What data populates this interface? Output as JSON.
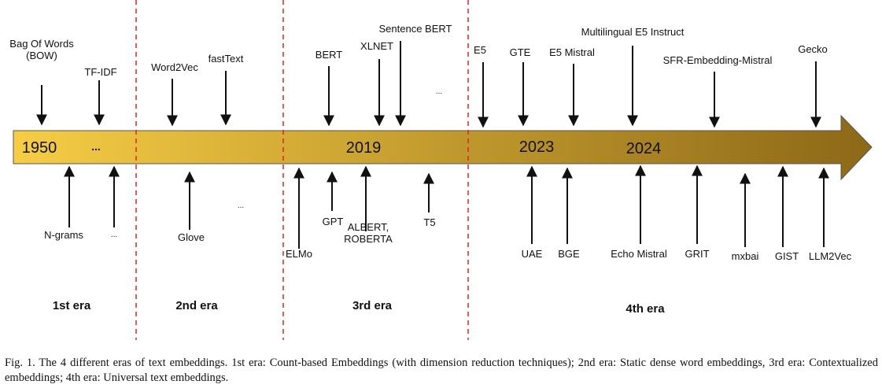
{
  "timeline": {
    "year_labels": [
      "1950",
      "...",
      "2019",
      "2023",
      "2024"
    ],
    "era_labels": [
      "1st era",
      "2nd era",
      "3rd era",
      "4th era"
    ],
    "above_labels": [
      [
        "Bag Of Words",
        "(BOW)"
      ],
      [
        "TF-IDF"
      ],
      [
        "Word2Vec"
      ],
      [
        "fastText"
      ],
      [
        "BERT"
      ],
      [
        "XLNET"
      ],
      [
        "Sentence BERT"
      ],
      [
        "..."
      ],
      [
        "E5"
      ],
      [
        "GTE"
      ],
      [
        "E5 Mistral"
      ],
      [
        "Multilingual E5 Instruct"
      ],
      [
        "SFR-Embedding-Mistral"
      ],
      [
        "Gecko"
      ]
    ],
    "below_labels": [
      [
        "N-grams"
      ],
      [
        "..."
      ],
      [
        "Glove"
      ],
      [
        "..."
      ],
      [
        "ELMo"
      ],
      [
        "GPT"
      ],
      [
        "ALBERT,",
        "ROBERTA"
      ],
      [
        "T5"
      ],
      [
        "UAE"
      ],
      [
        "BGE"
      ],
      [
        "Echo Mistral"
      ],
      [
        "GRIT"
      ],
      [
        "mxbai"
      ],
      [
        "GIST"
      ],
      [
        "LLM2Vec"
      ]
    ]
  },
  "caption": "Fig. 1.    The 4 different eras of text embeddings. 1st era: Count-based Embeddings (with dimension reduction techniques); 2nd era: Static dense word embeddings, 3rd era: Contextualized embeddings; 4th era: Universal text embeddings.",
  "colors": {
    "arrow_start": "#f6cd45",
    "arrow_end": "#8d6817",
    "divider": "#e0261f"
  }
}
